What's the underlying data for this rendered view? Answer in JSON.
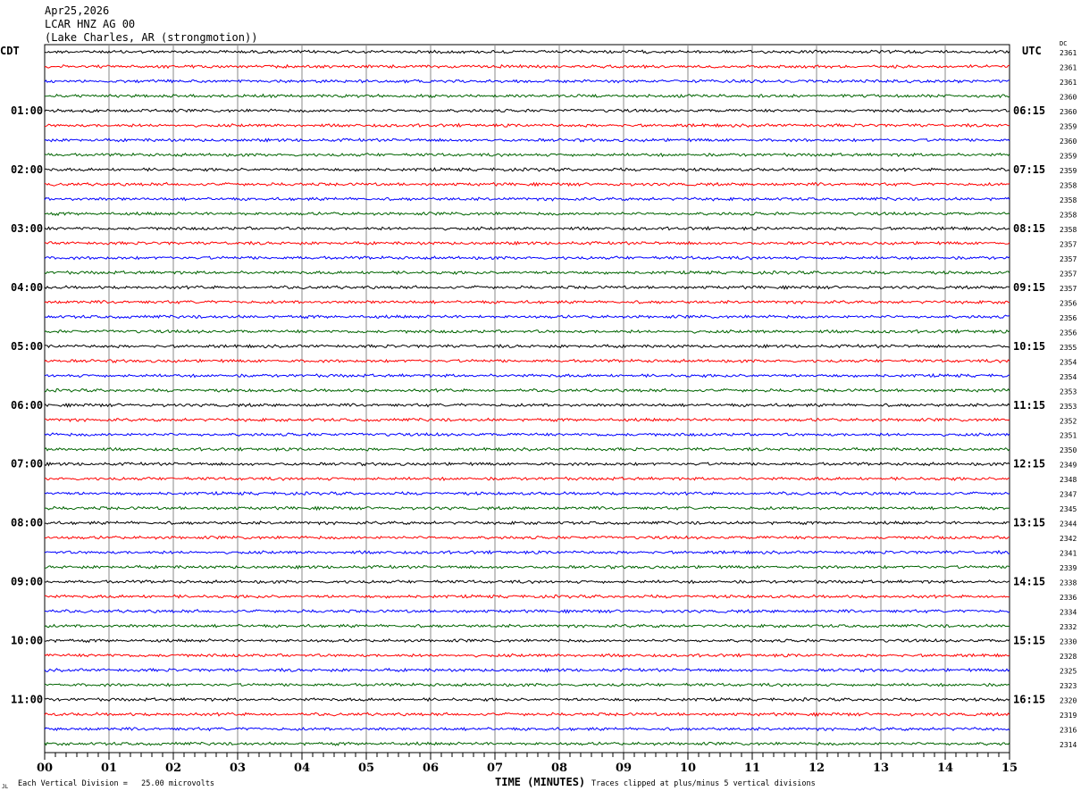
{
  "chart_data": {
    "type": "line",
    "title_lines": [
      "Apr25,2026",
      "LCAR HNZ AG 00",
      "(Lake Charles, AR (strongmotion))"
    ],
    "left_timezone": "CDT",
    "right_timezone": "UTC",
    "dc_header": "DC",
    "left_hour_labels": [
      "01:00",
      "02:00",
      "03:00",
      "04:00",
      "05:00",
      "06:00",
      "07:00",
      "08:00",
      "09:00",
      "10:00",
      "11:00"
    ],
    "right_hour_labels": [
      "06:15",
      "07:15",
      "08:15",
      "09:15",
      "10:15",
      "11:15",
      "12:15",
      "13:15",
      "14:15",
      "15:15",
      "16:15"
    ],
    "rows_per_hour": 4,
    "trace_colors": [
      "#000000",
      "#ff0000",
      "#0000ff",
      "#006400"
    ],
    "dc_values": [
      2361,
      2361,
      2361,
      2360,
      2360,
      2359,
      2360,
      2359,
      2359,
      2358,
      2358,
      2358,
      2358,
      2357,
      2357,
      2357,
      2357,
      2356,
      2356,
      2356,
      2355,
      2354,
      2354,
      2353,
      2353,
      2352,
      2351,
      2350,
      2349,
      2348,
      2347,
      2345,
      2344,
      2342,
      2341,
      2339,
      2338,
      2336,
      2334,
      2332,
      2330,
      2328,
      2325,
      2323,
      2320,
      2319,
      2316,
      2314
    ],
    "x_ticks": [
      "00",
      "01",
      "02",
      "03",
      "04",
      "05",
      "06",
      "07",
      "08",
      "09",
      "10",
      "11",
      "12",
      "13",
      "14",
      "15"
    ],
    "xlim": [
      0,
      15
    ],
    "xlabel": "TIME (MINUTES)",
    "grid": true,
    "scale_note": "Each Vertical Division =   25.00 microvolts",
    "clip_note": "Traces clipped at plus/minus 5 vertical divisions",
    "corner_mark": "JL"
  }
}
